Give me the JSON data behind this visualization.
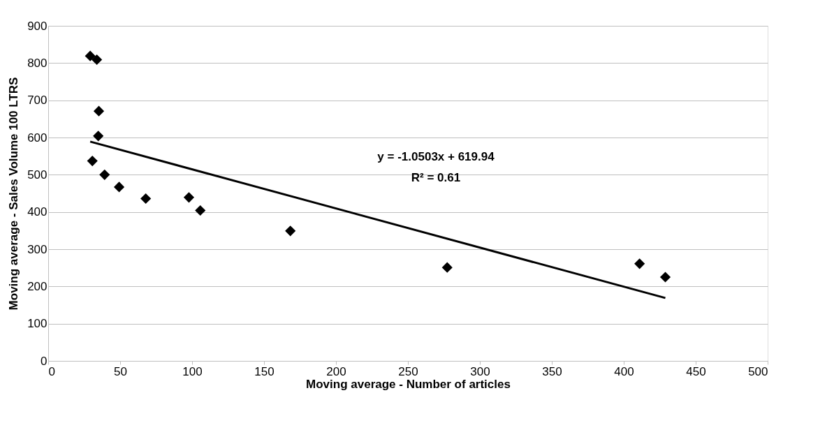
{
  "chart_data": {
    "type": "scatter",
    "xlabel": "Moving average - Number of articles",
    "ylabel": "Moving average - Sales Volume 100 LTRS",
    "xlim": [
      0,
      500
    ],
    "xticks": [
      0,
      50,
      100,
      150,
      200,
      250,
      300,
      350,
      400,
      450,
      500
    ],
    "ylim": [
      0,
      900
    ],
    "yticks": [
      0,
      100,
      200,
      300,
      400,
      500,
      600,
      700,
      800,
      900
    ],
    "grid": "y",
    "series": [
      {
        "color": "#000000",
        "marker": "diamond",
        "x": [
          29.2,
          33.8,
          35.2,
          34.8,
          30.7,
          39.2,
          49.3,
          67.8,
          97.8,
          105.7,
          168.3,
          277.3,
          411,
          428.9
        ],
        "values": [
          819,
          809,
          671,
          604,
          537,
          500,
          467,
          436,
          439,
          404,
          349,
          251,
          261,
          225
        ]
      },
      {
        "type": "line",
        "color": "#000000",
        "line_style": "solid",
        "marker": "none",
        "x": [
          29.2,
          428.9
        ],
        "values": [
          589,
          169
        ]
      }
    ],
    "annotations": [
      "y = -1.0503x + 619.94",
      "R² = 0.61"
    ]
  }
}
